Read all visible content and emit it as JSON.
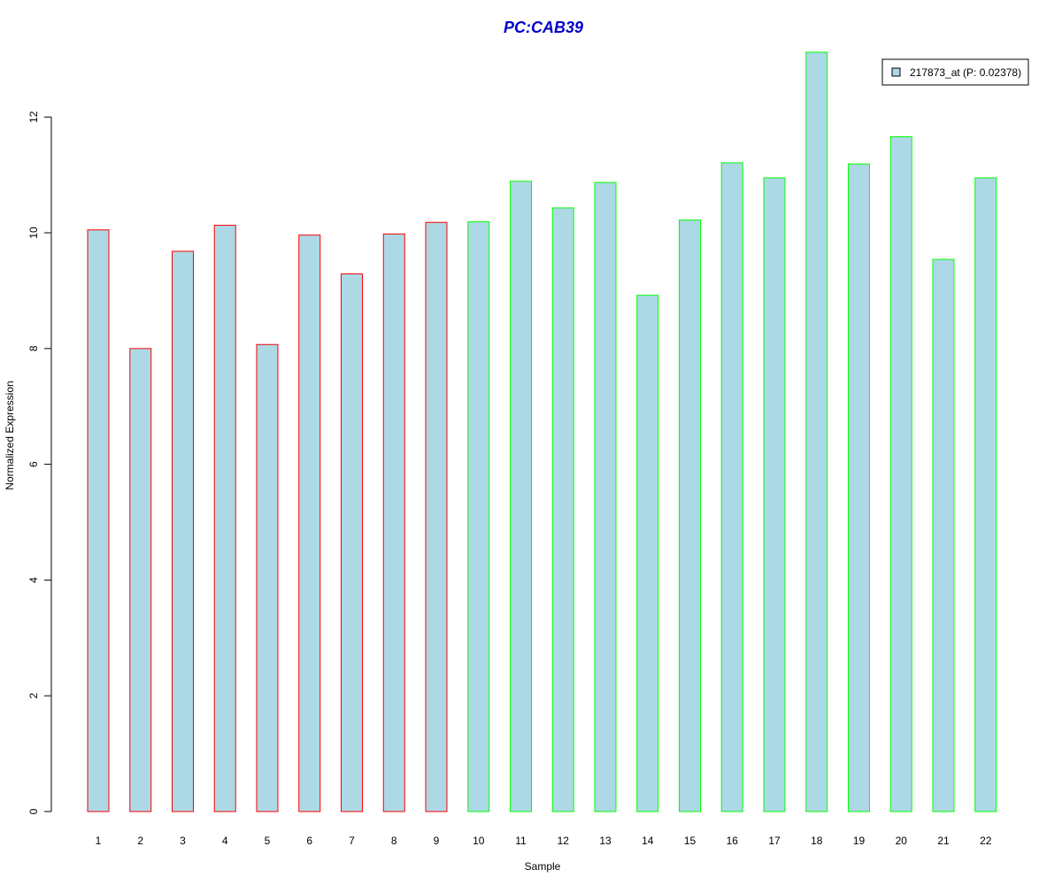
{
  "chart_data": {
    "type": "bar",
    "title": "PC:CAB39",
    "xlabel": "Sample",
    "ylabel": "Normalized Expression",
    "categories": [
      "1",
      "2",
      "3",
      "4",
      "5",
      "6",
      "7",
      "8",
      "9",
      "10",
      "11",
      "12",
      "13",
      "14",
      "15",
      "16",
      "17",
      "18",
      "19",
      "20",
      "21",
      "22"
    ],
    "series": [
      {
        "name": "217873_at (P: 0.02378)",
        "values": [
          10.05,
          8.0,
          9.68,
          10.13,
          8.07,
          9.96,
          9.29,
          9.98,
          10.18,
          10.19,
          10.89,
          10.43,
          10.87,
          8.92,
          10.22,
          11.21,
          10.95,
          13.12,
          11.19,
          11.66,
          9.54,
          10.95
        ]
      }
    ],
    "group_colors": [
      "red",
      "red",
      "red",
      "red",
      "red",
      "red",
      "red",
      "red",
      "red",
      "green",
      "green",
      "green",
      "green",
      "green",
      "green",
      "green",
      "green",
      "green",
      "green",
      "green",
      "green",
      "green"
    ],
    "ylim": [
      0,
      13.12
    ],
    "yticks": [
      0,
      2,
      4,
      6,
      8,
      10,
      12
    ],
    "grid": false,
    "legend_position": "top-right"
  },
  "colors": {
    "bar_fill": "#add8e6",
    "border_red": "#ff0000",
    "border_green": "#00ff00",
    "title": "#0000cd",
    "axis": "#000000"
  }
}
